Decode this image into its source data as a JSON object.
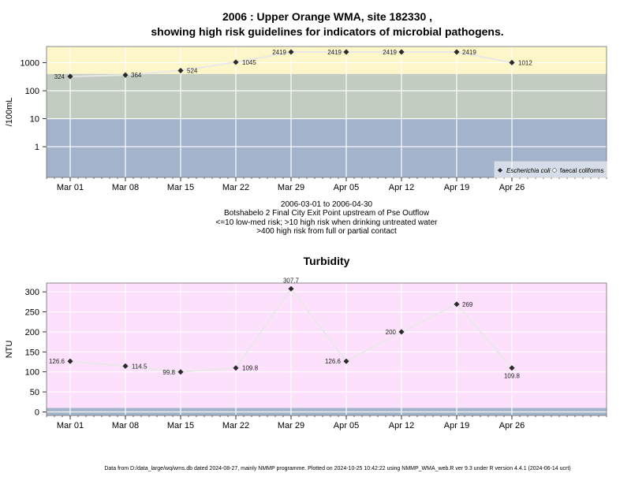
{
  "title_line1": "2006 : Upper Orange WMA, site 182330 ,",
  "title_line2": "showing high risk guidelines for indicators of microbial pathogens.",
  "caption": [
    "2006-03-01 to 2006-04-30",
    "Botshabelo 2 Final City Exit Point upstream of Pse Outflow",
    "<=10 low-med risk; >10 high risk when drinking untreated water",
    ">400 high risk from full or partial contact"
  ],
  "footer": "Data from D:/data_large/wq/wms.db dated 2024-08-27, mainly NMMP programme. Plotted on 2024-10-25 10:42:22 using NMMP_WMA_web.R ver 9.3 under R version 4.4.1 (2024-06-14 ucrt)",
  "colors": {
    "band_low": "#a3b3cc",
    "band_mid": "#c2ccc0",
    "band_high": "#fdf6c8",
    "turbidity_bg": "#fde0fc",
    "turbidity_base": "#a3b3cc",
    "line": "#e8e8e8",
    "marker": "#2b2b2b"
  },
  "chart_data": [
    {
      "type": "line",
      "title": "",
      "xlabel": "",
      "ylabel": "/100mL",
      "yscale": "log",
      "ylim": [
        0.08,
        3800
      ],
      "yticks": [
        1,
        10,
        100,
        1000
      ],
      "ytick_labels": [
        "1",
        "10",
        "100",
        "1000"
      ],
      "xlim": [
        "2006-02-26",
        "2006-05-08"
      ],
      "xticks": [
        "2006-03-01",
        "2006-03-08",
        "2006-03-15",
        "2006-03-22",
        "2006-03-29",
        "2006-04-05",
        "2006-04-12",
        "2006-04-19",
        "2006-04-26"
      ],
      "xtick_labels": [
        "Mar 01",
        "Mar 08",
        "Mar 15",
        "Mar 22",
        "Mar 29",
        "Apr 05",
        "Apr 12",
        "Apr 19",
        "Apr 26"
      ],
      "bands": [
        {
          "from": 0.08,
          "to": 10,
          "color": "#a3b3cc"
        },
        {
          "from": 10,
          "to": 400,
          "color": "#c2ccc0"
        },
        {
          "from": 400,
          "to": 3800,
          "color": "#fdf6c8"
        }
      ],
      "grid": true,
      "legend_position": "bottom-right",
      "legend": [
        "Escherichia coli",
        "faecal coliforms"
      ],
      "series": [
        {
          "name": "Escherichia coli",
          "x": [
            "2006-03-01",
            "2006-03-08",
            "2006-03-15",
            "2006-03-22",
            "2006-03-29",
            "2006-04-05",
            "2006-04-12",
            "2006-04-19",
            "2006-04-26"
          ],
          "y": [
            324,
            364,
            524,
            1045,
            2419,
            2419,
            2419,
            2419,
            1012
          ],
          "labels": [
            "324",
            "364",
            "524",
            "1045",
            "2419",
            "2419",
            "2419",
            "2419",
            "1012"
          ]
        }
      ]
    },
    {
      "type": "line",
      "title": "Turbidity",
      "xlabel": "",
      "ylabel": "NTU",
      "ylim": [
        -9,
        322
      ],
      "yticks": [
        0,
        50,
        100,
        150,
        200,
        250,
        300
      ],
      "ytick_labels": [
        "0",
        "50",
        "100",
        "150",
        "200",
        "250",
        "300"
      ],
      "xlim": [
        "2006-02-26",
        "2006-05-08"
      ],
      "xticks": [
        "2006-03-01",
        "2006-03-08",
        "2006-03-15",
        "2006-03-22",
        "2006-03-29",
        "2006-04-05",
        "2006-04-12",
        "2006-04-19",
        "2006-04-26"
      ],
      "xtick_labels": [
        "Mar 01",
        "Mar 08",
        "Mar 15",
        "Mar 22",
        "Mar 29",
        "Apr 05",
        "Apr 12",
        "Apr 19",
        "Apr 26"
      ],
      "bands": [
        {
          "from": -9,
          "to": 10,
          "color": "#a3b3cc"
        },
        {
          "from": 10,
          "to": 322,
          "color": "#fde0fc"
        }
      ],
      "grid": true,
      "series": [
        {
          "name": "",
          "x": [
            "2006-03-01",
            "2006-03-08",
            "2006-03-15",
            "2006-03-22",
            "2006-03-29",
            "2006-04-05",
            "2006-04-12",
            "2006-04-19",
            "2006-04-26"
          ],
          "y": [
            126.6,
            114.5,
            99.8,
            109.8,
            307.7,
            126.6,
            200,
            269,
            109.8
          ],
          "labels": [
            "126.6",
            "114.5",
            "99.8",
            "109.8",
            "307.7",
            "126.6",
            "200",
            "269",
            "109.8"
          ]
        }
      ]
    }
  ]
}
